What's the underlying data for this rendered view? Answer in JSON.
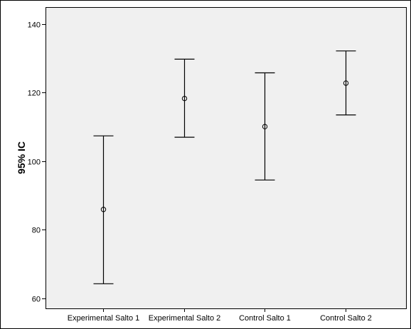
{
  "chart_data": {
    "type": "errorbar",
    "title": "",
    "xlabel": "",
    "ylabel": "95% IC",
    "ylim": [
      57,
      145
    ],
    "yticks": [
      60,
      80,
      100,
      120,
      140
    ],
    "grid": false,
    "categories": [
      "Experimental Salto 1",
      "Experimental Salto 2",
      "Control Salto 1",
      "Control Salto 2"
    ],
    "series": [
      {
        "mean": [
          85.9,
          118.3,
          110.1,
          122.8
        ],
        "lower": [
          64.2,
          107.0,
          94.5,
          113.5
        ],
        "upper": [
          107.4,
          129.8,
          125.8,
          132.2
        ]
      }
    ]
  }
}
